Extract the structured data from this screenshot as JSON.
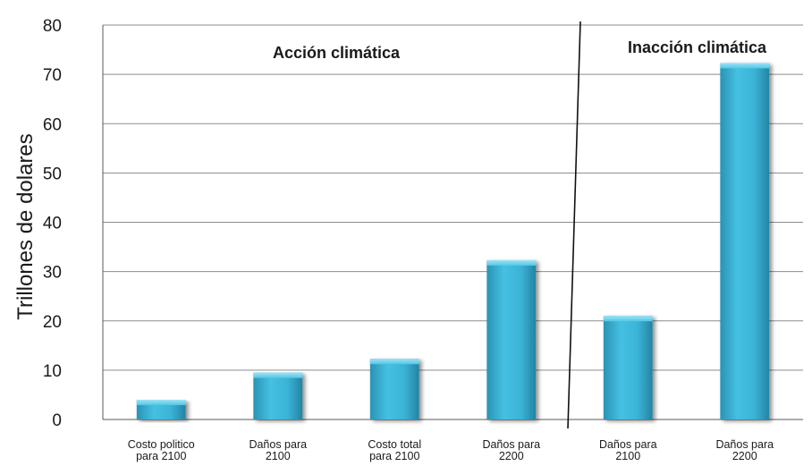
{
  "chart_data": {
    "type": "bar",
    "ylabel": "Trillones de dolares",
    "ylim": [
      0,
      80
    ],
    "yticks": [
      "0",
      "10",
      "20",
      "30",
      "40",
      "50",
      "60",
      "70",
      "80"
    ],
    "grid": true,
    "categories": [
      [
        "Costo politico",
        "para 2100"
      ],
      [
        "Daños para",
        "2100"
      ],
      [
        "Costo total",
        "para 2100"
      ],
      [
        "Daños para",
        "2200"
      ],
      [
        "Daños para",
        "2100"
      ],
      [
        "Daños para",
        "2200"
      ]
    ],
    "values": [
      4,
      9.5,
      12.3,
      32.3,
      21,
      72.3
    ],
    "regions": [
      {
        "label": "Acción climática",
        "categories": 4
      },
      {
        "label": "Inacción climática",
        "categories": 2
      }
    ],
    "bar_color": "#3bb3d6"
  }
}
